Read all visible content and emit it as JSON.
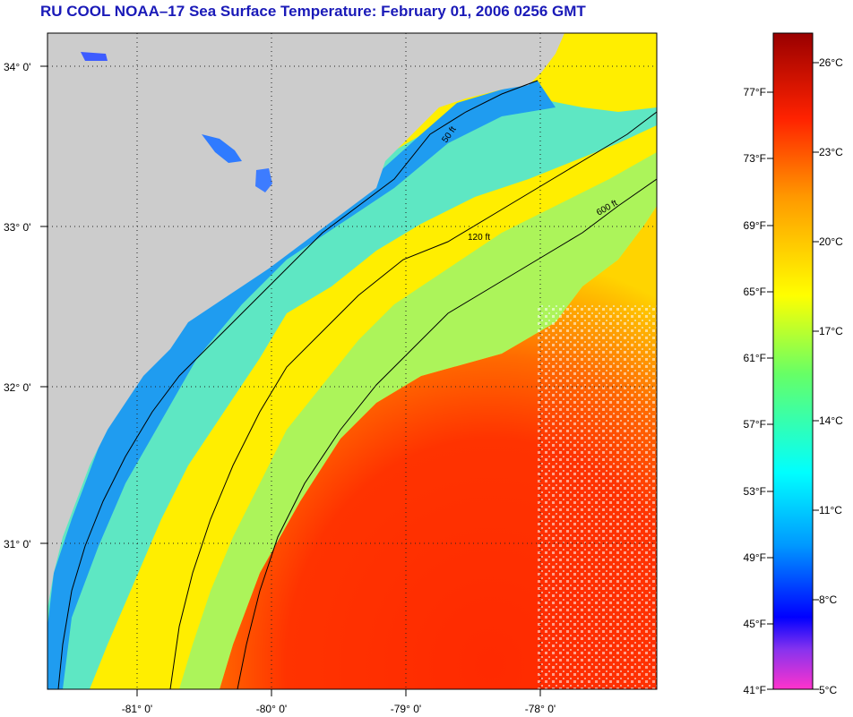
{
  "title": "RU COOL  NOAA–17  Sea Surface Temperature:  February 01, 2006 0256 GMT",
  "map": {
    "latitude_labels": [
      "34° 0'",
      "33° 0'",
      "32° 0'",
      "31° 0'"
    ],
    "longitude_labels": [
      "-81° 0'",
      "-80° 0'",
      "-79° 0'",
      "-78° 0'"
    ],
    "contours": [
      {
        "depth": 50,
        "label": "50 ft"
      },
      {
        "depth": 120,
        "label": "120 ft"
      },
      {
        "depth": 600,
        "label": "600 ft"
      }
    ],
    "land_color": "#cccccc"
  },
  "colorbar": {
    "fahrenheit_labels": [
      "77°F",
      "73°F",
      "69°F",
      "65°F",
      "61°F",
      "57°F",
      "53°F",
      "49°F",
      "45°F",
      "41°F"
    ],
    "celsius_labels": [
      "26°C",
      "23°C",
      "20°C",
      "17°C",
      "14°C",
      "11°C",
      "8°C",
      "5°C"
    ],
    "color_stops": [
      "#ff33cc",
      "#8833ee",
      "#0000ff",
      "#0099ff",
      "#00ffff",
      "#66ff66",
      "#ffff00",
      "#ff9900",
      "#ff2200",
      "#990000"
    ]
  }
}
